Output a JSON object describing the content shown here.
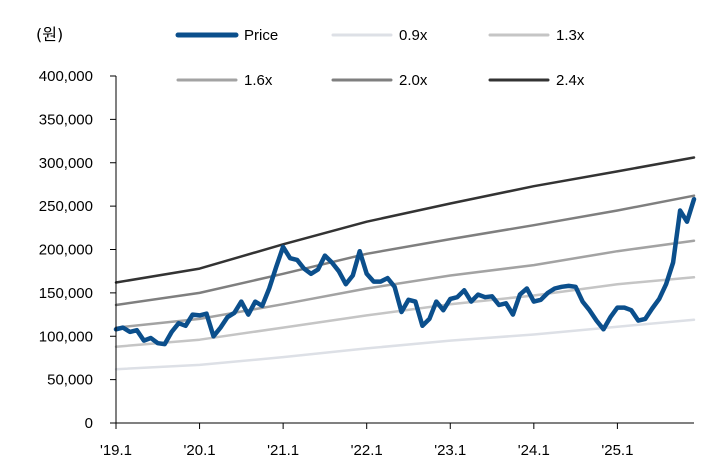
{
  "chart_data": {
    "type": "line",
    "title": "",
    "unit_label": "(원)",
    "xlabel": "",
    "ylabel": "",
    "ylim": [
      0,
      400000
    ],
    "y_ticks": [
      0,
      50000,
      100000,
      150000,
      200000,
      250000,
      300000,
      350000,
      400000
    ],
    "y_tick_labels": [
      "0",
      "50,000",
      "100,000",
      "150,000",
      "200,000",
      "250,000",
      "300,000",
      "350,000",
      "400,000"
    ],
    "x_tick_labels": [
      "'19.1",
      "'20.1",
      "'21.1",
      "'22.1",
      "'23.1",
      "'24.1",
      "'25.1"
    ],
    "x_tick_positions": [
      0,
      12,
      24,
      36,
      48,
      60,
      72
    ],
    "xlim": [
      0,
      83
    ],
    "legend_position": "top",
    "series": [
      {
        "name": "Price",
        "color": "#0b4f8c",
        "x": [
          0,
          1,
          2,
          3,
          4,
          5,
          6,
          7,
          8,
          9,
          10,
          11,
          12,
          13,
          14,
          15,
          16,
          17,
          18,
          19,
          20,
          21,
          22,
          23,
          24,
          25,
          26,
          27,
          28,
          29,
          30,
          31,
          32,
          33,
          34,
          35,
          36,
          37,
          38,
          39,
          40,
          41,
          42,
          43,
          44,
          45,
          46,
          47,
          48,
          49,
          50,
          51,
          52,
          53,
          54,
          55,
          56,
          57,
          58,
          59,
          60,
          61,
          62,
          63,
          64,
          65,
          66,
          67,
          68,
          69,
          70,
          71,
          72,
          73,
          74,
          75,
          76,
          77,
          78,
          79,
          80,
          81,
          82,
          83
        ],
        "values": [
          108000,
          110000,
          105000,
          107000,
          95000,
          98000,
          92000,
          91000,
          105000,
          115000,
          112000,
          125000,
          124000,
          126000,
          100000,
          110000,
          122000,
          127000,
          140000,
          125000,
          140000,
          135000,
          155000,
          180000,
          203000,
          190000,
          188000,
          178000,
          172000,
          177000,
          193000,
          185000,
          175000,
          160000,
          170000,
          198000,
          172000,
          163000,
          163000,
          167000,
          157000,
          128000,
          142000,
          140000,
          112000,
          120000,
          140000,
          130000,
          143000,
          145000,
          153000,
          140000,
          148000,
          145000,
          146000,
          136000,
          138000,
          125000,
          148000,
          155000,
          140000,
          142000,
          150000,
          155000,
          157000,
          158000,
          157000,
          140000,
          130000,
          118000,
          108000,
          122000,
          133000,
          133000,
          130000,
          118000,
          120000,
          132000,
          143000,
          160000,
          185000,
          245000,
          232000,
          258000
        ]
      },
      {
        "name": "0.9x",
        "color": "#dde0e6",
        "x": [
          0,
          12,
          24,
          36,
          48,
          60,
          72,
          83
        ],
        "values": [
          62000,
          67000,
          76000,
          86000,
          95000,
          102000,
          111000,
          119000
        ]
      },
      {
        "name": "1.3x",
        "color": "#c5c5c5",
        "x": [
          0,
          12,
          24,
          36,
          48,
          60,
          72,
          83
        ],
        "values": [
          88000,
          96000,
          110000,
          124000,
          137000,
          147000,
          160000,
          168000
        ]
      },
      {
        "name": "1.6x",
        "color": "#a3a3a3",
        "x": [
          0,
          12,
          24,
          36,
          48,
          60,
          72,
          83
        ],
        "values": [
          110000,
          120000,
          137000,
          155000,
          170000,
          182000,
          198000,
          210000
        ]
      },
      {
        "name": "2.0x",
        "color": "#7f7f7f",
        "x": [
          0,
          12,
          24,
          36,
          48,
          60,
          72,
          83
        ],
        "values": [
          136000,
          150000,
          172000,
          195000,
          212000,
          228000,
          245000,
          262000
        ]
      },
      {
        "name": "2.4x",
        "color": "#333333",
        "x": [
          0,
          12,
          24,
          36,
          48,
          60,
          72,
          83
        ],
        "values": [
          162000,
          178000,
          206000,
          232000,
          253000,
          273000,
          290000,
          306000
        ]
      }
    ]
  }
}
